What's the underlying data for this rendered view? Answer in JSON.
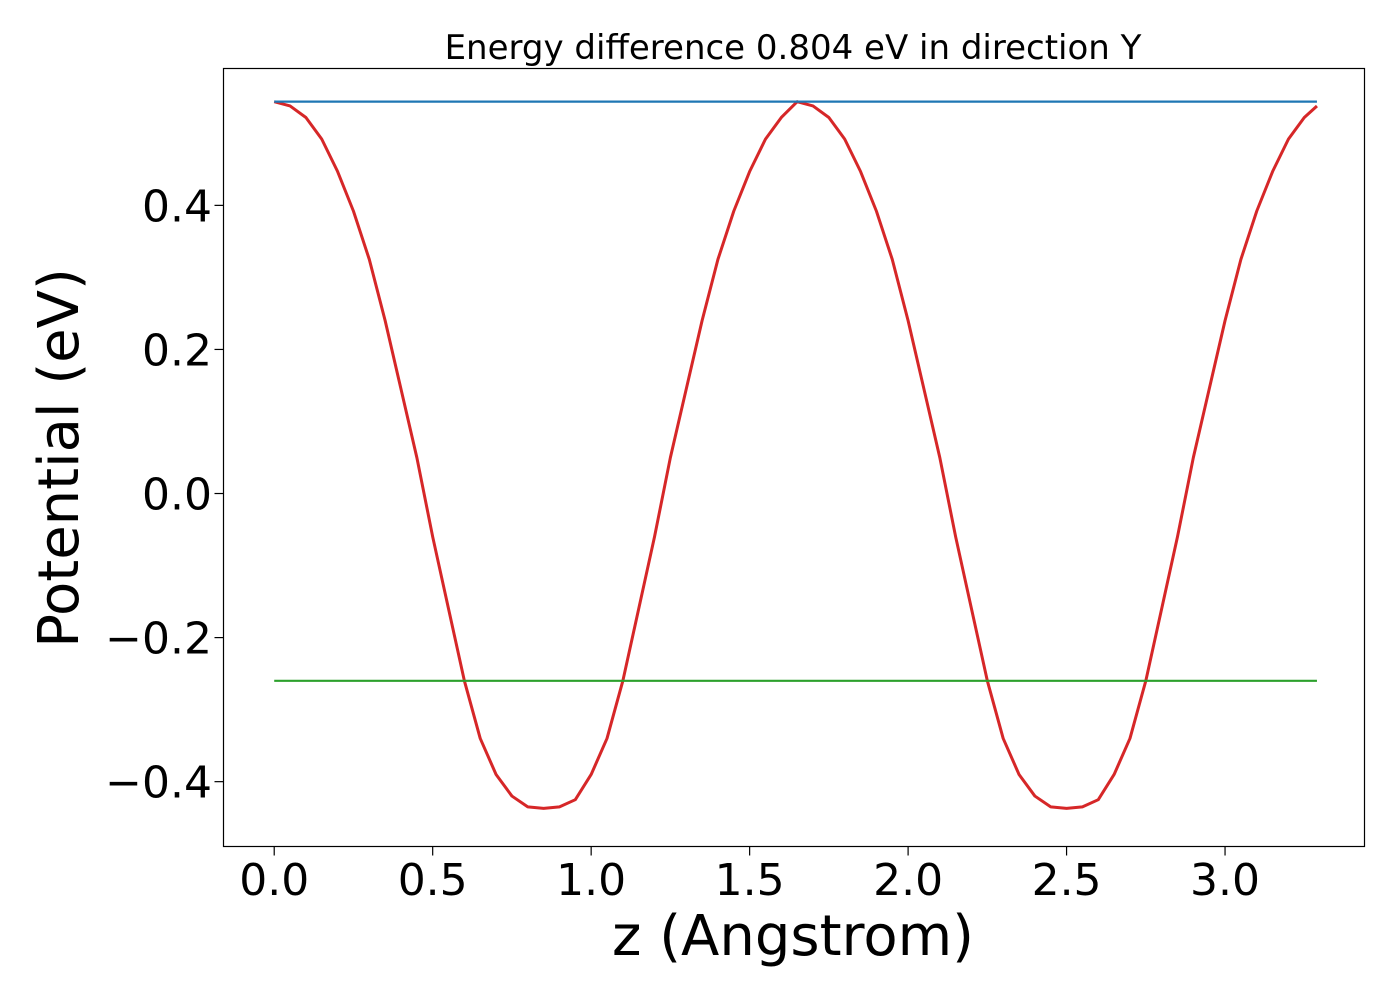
{
  "chart_data": {
    "type": "line",
    "title": "Energy difference 0.804 eV in direction Y",
    "xlabel": "z (Angstrom)",
    "ylabel": "Potential (eV)",
    "xlim": [
      -0.16,
      3.44
    ],
    "ylim": [
      -0.49,
      0.59
    ],
    "xticks": [
      0.0,
      0.5,
      1.0,
      1.5,
      2.0,
      2.5,
      3.0
    ],
    "xtick_labels": [
      "0.0",
      "0.5",
      "1.0",
      "1.5",
      "2.0",
      "2.5",
      "3.0"
    ],
    "yticks": [
      0.4,
      0.2,
      0.0,
      -0.2,
      -0.4
    ],
    "ytick_labels": [
      "0.4",
      "0.2",
      "0.0",
      "−0.2",
      "−0.4"
    ],
    "grid": false,
    "series": [
      {
        "color": "#d62728",
        "x": [
          0.0,
          0.05,
          0.1,
          0.15,
          0.2,
          0.25,
          0.3,
          0.35,
          0.4,
          0.45,
          0.5,
          0.55,
          0.6,
          0.65,
          0.7,
          0.75,
          0.8,
          0.85,
          0.9,
          0.95,
          1.0,
          1.05,
          1.1,
          1.15,
          1.2,
          1.25,
          1.3,
          1.35,
          1.4,
          1.45,
          1.5,
          1.55,
          1.6,
          1.65,
          1.7,
          1.75,
          1.8,
          1.85,
          1.9,
          1.95,
          2.0,
          2.05,
          2.1,
          2.15,
          2.2,
          2.25,
          2.3,
          2.35,
          2.4,
          2.45,
          2.5,
          2.55,
          2.6,
          2.65,
          2.7,
          2.75,
          2.8,
          2.85,
          2.9,
          2.95,
          3.0,
          3.05,
          3.1,
          3.15,
          3.2,
          3.25,
          3.29
        ],
        "y": [
          0.544,
          0.538,
          0.522,
          0.492,
          0.447,
          0.392,
          0.325,
          0.24,
          0.145,
          0.05,
          -0.06,
          -0.16,
          -0.26,
          -0.34,
          -0.39,
          -0.42,
          -0.435,
          -0.437,
          -0.435,
          -0.425,
          -0.39,
          -0.34,
          -0.26,
          -0.16,
          -0.06,
          0.05,
          0.145,
          0.24,
          0.325,
          0.392,
          0.447,
          0.492,
          0.522,
          0.544,
          0.538,
          0.522,
          0.492,
          0.447,
          0.392,
          0.325,
          0.24,
          0.145,
          0.05,
          -0.06,
          -0.16,
          -0.26,
          -0.34,
          -0.39,
          -0.42,
          -0.435,
          -0.437,
          -0.435,
          -0.425,
          -0.39,
          -0.34,
          -0.26,
          -0.16,
          -0.06,
          0.05,
          0.145,
          0.24,
          0.325,
          0.392,
          0.447,
          0.492,
          0.522,
          0.538
        ]
      },
      {
        "color": "#1f77b4",
        "x": [
          0.0,
          3.29
        ],
        "y": [
          0.544,
          0.544
        ]
      },
      {
        "color": "#2ca02c",
        "x": [
          0.0,
          3.29
        ],
        "y": [
          -0.26,
          -0.26
        ]
      }
    ]
  }
}
